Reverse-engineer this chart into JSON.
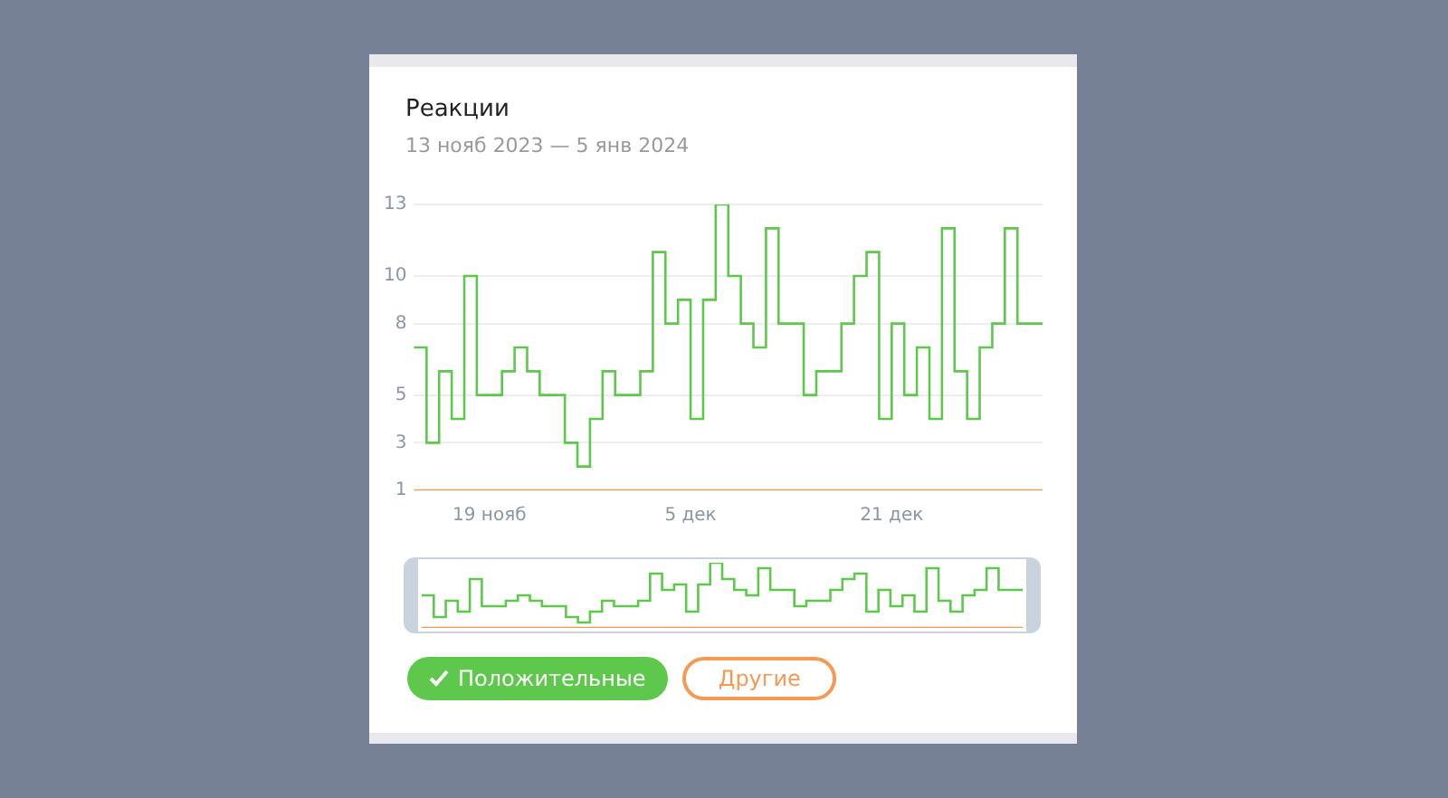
{
  "chart_data": {
    "type": "step",
    "title": "Реакции",
    "subtitle": "13 нояб 2023 — 5 янв 2024",
    "categories": [
      null,
      null,
      null,
      null,
      null,
      null,
      "19 нояб",
      null,
      null,
      null,
      null,
      null,
      null,
      null,
      null,
      null,
      null,
      null,
      null,
      null,
      null,
      null,
      "5 дек",
      null,
      null,
      null,
      null,
      null,
      null,
      null,
      null,
      null,
      null,
      null,
      null,
      null,
      null,
      null,
      "21 дек",
      null,
      null,
      null,
      null,
      null,
      null,
      null,
      null,
      null,
      null,
      null,
      null
    ],
    "series": [
      {
        "name": "Положительные",
        "color": "#5dc84b",
        "values": [
          7,
          7,
          3,
          6,
          4,
          10,
          5,
          5,
          6,
          7,
          6,
          5,
          5,
          3,
          2,
          4,
          6,
          5,
          5,
          6,
          11,
          8,
          9,
          4,
          9,
          13,
          10,
          8,
          7,
          12,
          8,
          8,
          5,
          6,
          6,
          8,
          10,
          11,
          4,
          8,
          5,
          7,
          4,
          12,
          6,
          4,
          7,
          8,
          12,
          8,
          8
        ]
      },
      {
        "name": "Другие",
        "color": "#f59a55",
        "values": [
          1,
          1,
          1,
          1,
          1,
          1,
          1,
          1,
          1,
          1,
          1,
          1,
          1,
          1,
          1,
          1,
          1,
          1,
          1,
          1,
          1,
          1,
          1,
          1,
          1,
          1,
          1,
          1,
          1,
          1,
          1,
          1,
          1,
          1,
          1,
          1,
          1,
          1,
          1,
          1,
          1,
          1,
          1,
          1,
          1,
          1,
          1,
          1,
          1,
          1,
          1
        ]
      }
    ],
    "ylim": [
      1,
      13
    ],
    "yticks": [
      1,
      3,
      5,
      8,
      10,
      13
    ],
    "grid": "y",
    "legend": "bottom",
    "marker": "none",
    "line_style": "solid"
  }
}
